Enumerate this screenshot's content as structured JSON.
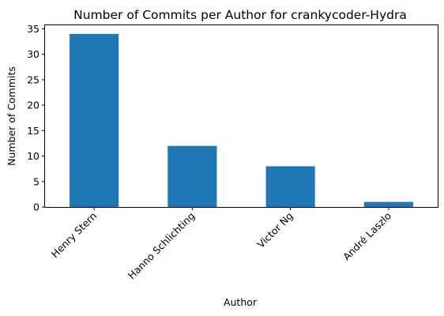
{
  "chart_data": {
    "type": "bar",
    "title": "Number of Commits per Author for crankycoder-Hydra",
    "xlabel": "Author",
    "ylabel": "Number of Commits",
    "categories": [
      "Henry Stern",
      "Hanno Schlichting",
      "Victor Ng",
      "André Laszlo"
    ],
    "values": [
      34,
      12,
      8,
      1
    ],
    "ylim": [
      0,
      35.7
    ],
    "yticks": [
      0,
      5,
      10,
      15,
      20,
      25,
      30,
      35
    ],
    "bar_color": "#1f77b4",
    "grid": false,
    "legend": "none"
  }
}
